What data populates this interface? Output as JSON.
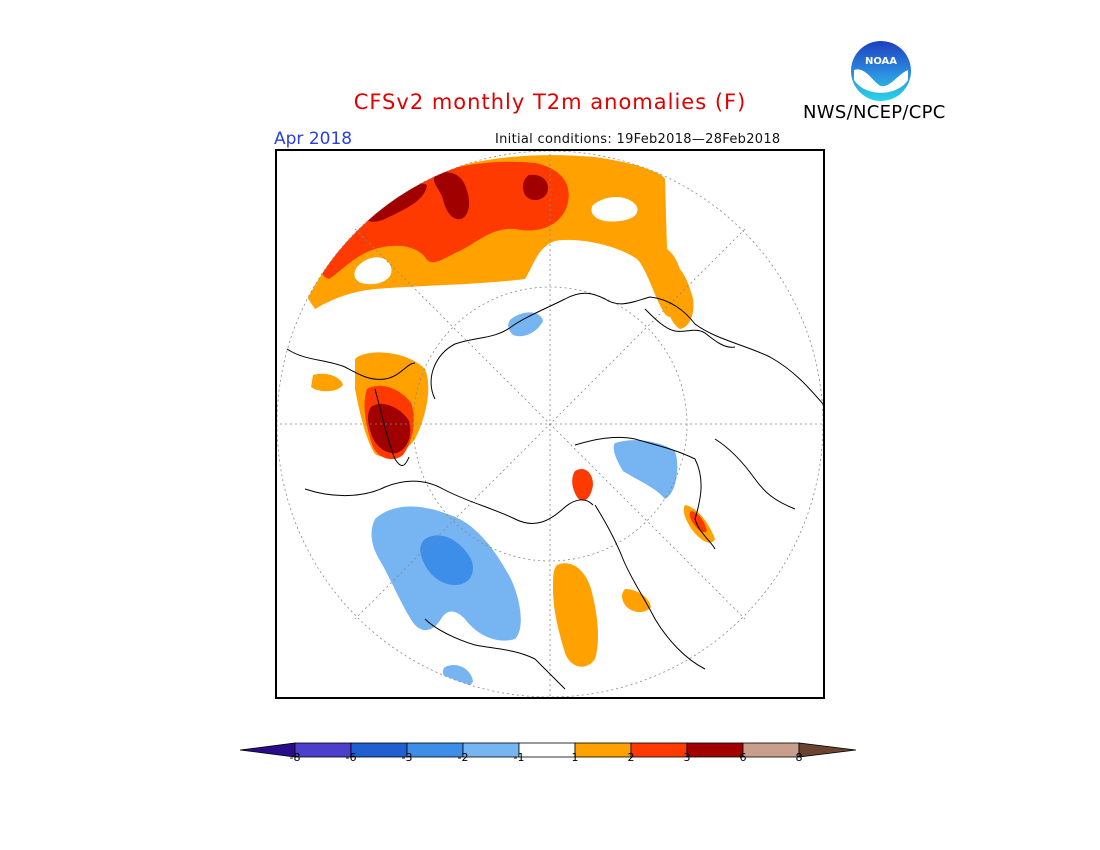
{
  "title": "CFSv2 monthly T2m anomalies (F)",
  "month": "Apr 2018",
  "initial_conditions": "Initial conditions: 19Feb2018—28Feb2018",
  "agency": "NWS/NCEP/CPC",
  "logo_text": "NOAA",
  "colors": {
    "title": "#e00000",
    "month": "#2a3fe0",
    "bins": [
      "#2a0c8a",
      "#4c3fcc",
      "#1f5fd0",
      "#3d8ee8",
      "#77b4f2",
      "#ffffff",
      "#ffa100",
      "#ff3a00",
      "#a00000",
      "#c89e8c",
      "#6b4431"
    ]
  },
  "colorbar": {
    "labels": [
      "-8",
      "-6",
      "-3",
      "-2",
      "-1",
      "1",
      "2",
      "3",
      "6",
      "8"
    ],
    "colors": [
      "#2a0c8a",
      "#4c3fcc",
      "#1f5fd0",
      "#3d8ee8",
      "#77b4f2",
      "#ffffff",
      "#ffa100",
      "#ff3a00",
      "#a00000",
      "#c89e8c",
      "#6b4431"
    ]
  }
}
